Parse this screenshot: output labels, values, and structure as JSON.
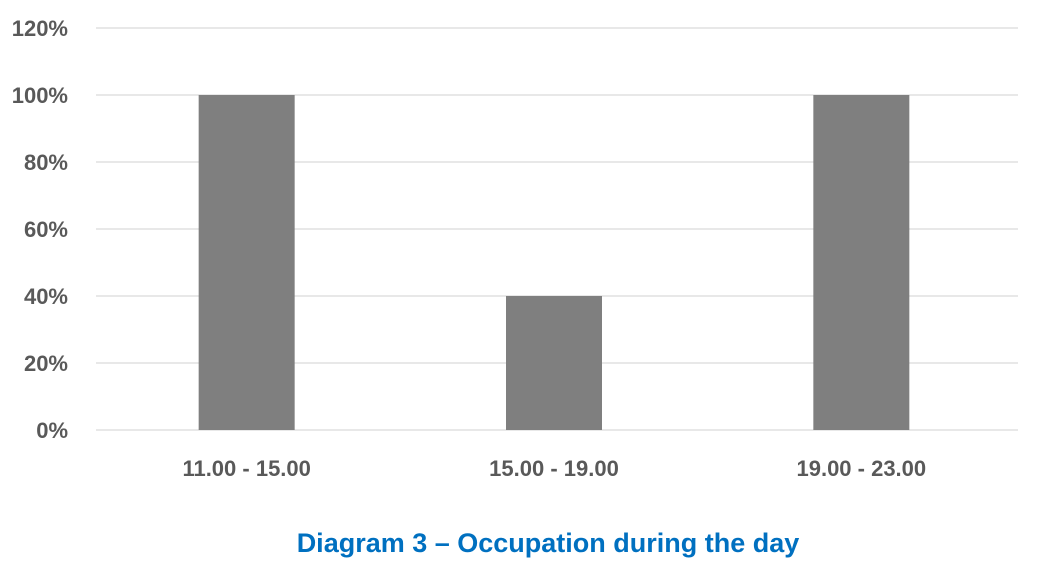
{
  "chart_data": {
    "type": "bar",
    "categories": [
      "11.00 - 15.00",
      "15.00 - 19.00",
      "19.00 - 23.00"
    ],
    "values": [
      100,
      40,
      100
    ],
    "ylim": [
      0,
      120
    ],
    "yticks": [
      "0%",
      "20%",
      "40%",
      "60%",
      "80%",
      "100%",
      "120%"
    ],
    "ytick_values": [
      0,
      20,
      40,
      60,
      80,
      100,
      120
    ],
    "grid": true,
    "bar_color": "#7f7f7f",
    "title": "Diagram 3 – Occupation during the day",
    "xlabel": "",
    "ylabel": ""
  },
  "colors": {
    "bar": "#7f7f7f",
    "grid": "#d9d9d9",
    "tick_text": "#595959",
    "caption": "#0070c0"
  }
}
